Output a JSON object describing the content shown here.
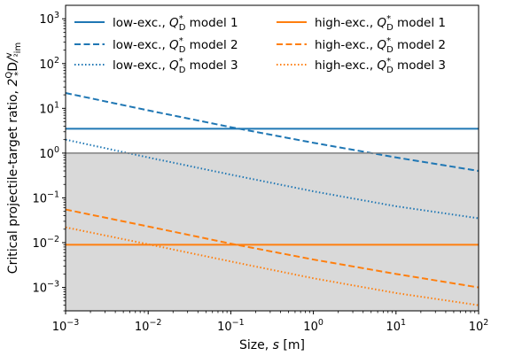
{
  "chart_data": {
    "type": "line",
    "xlabel": "Size, s [m]",
    "ylabel": "Critical projectile-target ratio, 2Q*D/v²imp",
    "x_scale": "log",
    "y_scale": "log",
    "xlim": [
      0.001,
      100
    ],
    "ylim": [
      0.0003,
      2000
    ],
    "x_ticks": [
      {
        "value": 0.001,
        "base": "10",
        "exp": "−3"
      },
      {
        "value": 0.01,
        "base": "10",
        "exp": "−2"
      },
      {
        "value": 0.1,
        "base": "10",
        "exp": "−1"
      },
      {
        "value": 1,
        "base": "10",
        "exp": "0"
      },
      {
        "value": 10,
        "base": "10",
        "exp": "1"
      },
      {
        "value": 100,
        "base": "10",
        "exp": "2"
      }
    ],
    "y_ticks": [
      {
        "value": 0.001,
        "base": "10",
        "exp": "−3"
      },
      {
        "value": 0.01,
        "base": "10",
        "exp": "−2"
      },
      {
        "value": 0.1,
        "base": "10",
        "exp": "−1"
      },
      {
        "value": 1,
        "base": "10",
        "exp": "0"
      },
      {
        "value": 10,
        "base": "10",
        "exp": "1"
      },
      {
        "value": 100,
        "base": "10",
        "exp": "2"
      },
      {
        "value": 1000,
        "base": "10",
        "exp": "3"
      }
    ],
    "shaded_region": {
      "y_from": 0.0003,
      "y_to": 1,
      "color": "#d9d9d9"
    },
    "reference_line": {
      "y": 1,
      "color": "#808080"
    },
    "legend_position": "top",
    "series": [
      {
        "name_prefix": "low-exc., ",
        "name_suffix": " model 1",
        "color": "#1f77b4",
        "dash": "solid",
        "x": [
          0.001,
          100
        ],
        "y": [
          3.5,
          3.5
        ]
      },
      {
        "name_prefix": "low-exc., ",
        "name_suffix": " model 2",
        "color": "#1f77b4",
        "dash": "dashed",
        "x": [
          0.001,
          0.01,
          0.1,
          1,
          10,
          100
        ],
        "y": [
          22,
          9.0,
          3.8,
          1.7,
          0.8,
          0.4
        ]
      },
      {
        "name_prefix": "low-exc., ",
        "name_suffix": " model 3",
        "color": "#1f77b4",
        "dash": "dotted",
        "x": [
          0.001,
          0.01,
          0.1,
          1,
          10,
          100
        ],
        "y": [
          2.0,
          0.8,
          0.33,
          0.14,
          0.065,
          0.035
        ]
      },
      {
        "name_prefix": "high-exc., ",
        "name_suffix": " model 1",
        "color": "#ff7f0e",
        "dash": "solid",
        "x": [
          0.001,
          100
        ],
        "y": [
          0.009,
          0.009
        ]
      },
      {
        "name_prefix": "high-exc., ",
        "name_suffix": " model 2",
        "color": "#ff7f0e",
        "dash": "dashed",
        "x": [
          0.001,
          0.01,
          0.1,
          1,
          10,
          100
        ],
        "y": [
          0.055,
          0.023,
          0.0095,
          0.0042,
          0.002,
          0.001
        ]
      },
      {
        "name_prefix": "high-exc., ",
        "name_suffix": " model 3",
        "color": "#ff7f0e",
        "dash": "dotted",
        "x": [
          0.001,
          0.01,
          0.1,
          1,
          10,
          100
        ],
        "y": [
          0.022,
          0.0092,
          0.0038,
          0.0016,
          0.00075,
          0.0004
        ]
      }
    ]
  }
}
